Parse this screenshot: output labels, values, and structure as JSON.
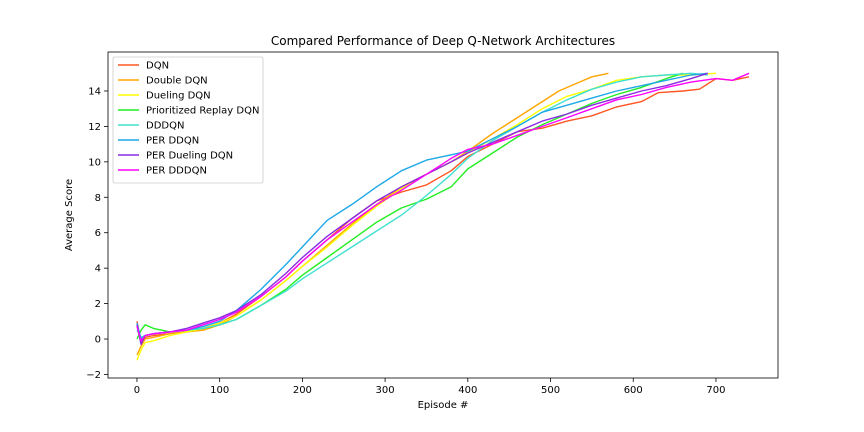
{
  "chart_data": {
    "type": "line",
    "title": "Compared Performance of Deep Q-Network Architectures",
    "xlabel": "Episode #",
    "ylabel": "Average Score",
    "xlim": [
      -35,
      775
    ],
    "ylim": [
      -2.2,
      16.2
    ],
    "xticks": [
      0,
      100,
      200,
      300,
      400,
      500,
      600,
      700
    ],
    "yticks": [
      -2,
      0,
      2,
      4,
      6,
      8,
      10,
      12,
      14
    ],
    "grid": false,
    "legend_position": "top-left",
    "series": [
      {
        "name": "DQN",
        "color": "#ff5722",
        "x": [
          0,
          5,
          10,
          20,
          40,
          60,
          80,
          100,
          120,
          150,
          180,
          200,
          230,
          260,
          290,
          320,
          350,
          380,
          400,
          430,
          460,
          490,
          520,
          550,
          580,
          610,
          630,
          660,
          680,
          700,
          720,
          740
        ],
        "y": [
          1.0,
          -0.2,
          0.1,
          0.2,
          0.3,
          0.4,
          0.6,
          0.9,
          1.4,
          2.4,
          3.5,
          4.4,
          5.6,
          6.8,
          7.8,
          8.3,
          8.7,
          9.5,
          10.3,
          11.0,
          11.7,
          11.9,
          12.3,
          12.6,
          13.1,
          13.4,
          13.9,
          14.0,
          14.1,
          14.7,
          14.6,
          14.8
        ]
      },
      {
        "name": "Double DQN",
        "color": "#ffa500",
        "x": [
          0,
          5,
          10,
          20,
          40,
          60,
          80,
          100,
          120,
          150,
          180,
          200,
          230,
          260,
          290,
          320,
          350,
          380,
          400,
          430,
          460,
          490,
          510,
          530,
          550,
          570
        ],
        "y": [
          -0.9,
          -0.4,
          0.0,
          0.1,
          0.3,
          0.4,
          0.5,
          0.8,
          1.3,
          2.2,
          3.3,
          4.1,
          5.3,
          6.5,
          7.6,
          8.6,
          9.3,
          10.0,
          10.6,
          11.6,
          12.5,
          13.4,
          14.0,
          14.4,
          14.8,
          15.0
        ]
      },
      {
        "name": "Dueling DQN",
        "color": "#ffff00",
        "x": [
          0,
          5,
          10,
          20,
          40,
          60,
          80,
          100,
          120,
          150,
          180,
          200,
          230,
          260,
          290,
          320,
          350,
          380,
          400,
          430,
          460,
          490,
          520,
          550,
          580,
          610,
          640,
          670,
          700
        ],
        "y": [
          -1.2,
          -0.6,
          -0.2,
          -0.1,
          0.2,
          0.4,
          0.6,
          0.9,
          1.3,
          2.2,
          3.3,
          4.1,
          5.2,
          6.4,
          7.5,
          8.5,
          9.3,
          10.0,
          10.5,
          11.3,
          12.1,
          13.0,
          13.7,
          14.1,
          14.6,
          14.8,
          14.9,
          14.9,
          15.0
        ]
      },
      {
        "name": "Prioritized Replay DQN",
        "color": "#22ee22",
        "x": [
          0,
          5,
          10,
          20,
          40,
          60,
          80,
          100,
          120,
          150,
          180,
          200,
          230,
          260,
          290,
          320,
          350,
          380,
          400,
          430,
          460,
          490,
          520,
          550,
          580,
          610,
          640,
          660
        ],
        "y": [
          0.0,
          0.5,
          0.8,
          0.6,
          0.4,
          0.5,
          0.6,
          0.8,
          1.1,
          1.9,
          2.8,
          3.6,
          4.6,
          5.6,
          6.6,
          7.4,
          7.9,
          8.6,
          9.6,
          10.5,
          11.4,
          12.1,
          12.7,
          13.3,
          13.8,
          14.2,
          14.7,
          15.0
        ]
      },
      {
        "name": "DDDQN",
        "color": "#40e0d0",
        "x": [
          0,
          5,
          10,
          20,
          40,
          60,
          80,
          100,
          120,
          150,
          180,
          200,
          230,
          260,
          290,
          320,
          350,
          380,
          400,
          430,
          460,
          490,
          520,
          550,
          580,
          610,
          640,
          670,
          690
        ],
        "y": [
          0.5,
          0.1,
          0.2,
          0.3,
          0.4,
          0.5,
          0.6,
          0.8,
          1.1,
          1.9,
          2.7,
          3.4,
          4.3,
          5.2,
          6.1,
          7.0,
          8.1,
          9.3,
          10.2,
          11.2,
          12.0,
          12.8,
          13.5,
          14.1,
          14.5,
          14.8,
          14.9,
          15.0,
          14.9
        ]
      },
      {
        "name": "PER DDQN",
        "color": "#1ea8e8",
        "x": [
          0,
          5,
          10,
          20,
          40,
          60,
          80,
          100,
          120,
          150,
          180,
          200,
          230,
          260,
          290,
          320,
          350,
          380,
          400,
          430,
          460,
          490,
          520,
          550,
          580,
          610,
          640,
          670,
          690
        ],
        "y": [
          0.9,
          0.0,
          0.2,
          0.3,
          0.4,
          0.5,
          0.7,
          1.0,
          1.6,
          2.8,
          4.2,
          5.2,
          6.7,
          7.6,
          8.6,
          9.5,
          10.1,
          10.4,
          10.6,
          11.3,
          12.0,
          12.8,
          13.2,
          13.6,
          14.0,
          14.3,
          14.6,
          14.9,
          15.0
        ]
      },
      {
        "name": "PER Dueling DQN",
        "color": "#8a2be2",
        "x": [
          0,
          5,
          10,
          20,
          40,
          60,
          80,
          100,
          120,
          150,
          180,
          200,
          230,
          260,
          290,
          320,
          350,
          380,
          400,
          430,
          460,
          490,
          520,
          550,
          580,
          610,
          640,
          670,
          690
        ],
        "y": [
          0.8,
          -0.3,
          0.2,
          0.3,
          0.4,
          0.6,
          0.9,
          1.2,
          1.6,
          2.5,
          3.7,
          4.6,
          5.8,
          6.8,
          7.8,
          8.6,
          9.3,
          10.0,
          10.5,
          11.1,
          11.7,
          12.3,
          12.7,
          13.2,
          13.6,
          14.0,
          14.3,
          14.7,
          15.0
        ]
      },
      {
        "name": "PER DDDQN",
        "color": "#ff00ff",
        "x": [
          0,
          5,
          10,
          20,
          40,
          60,
          80,
          100,
          120,
          150,
          180,
          200,
          230,
          260,
          290,
          320,
          350,
          380,
          400,
          430,
          460,
          490,
          520,
          550,
          580,
          610,
          640,
          670,
          700,
          720,
          740
        ],
        "y": [
          0.7,
          -0.1,
          0.2,
          0.3,
          0.4,
          0.5,
          0.8,
          1.1,
          1.5,
          2.4,
          3.5,
          4.4,
          5.6,
          6.6,
          7.6,
          8.4,
          9.3,
          10.2,
          10.7,
          11.0,
          11.5,
          12.0,
          12.5,
          13.0,
          13.5,
          13.8,
          14.2,
          14.5,
          14.7,
          14.6,
          15.0
        ]
      }
    ]
  }
}
